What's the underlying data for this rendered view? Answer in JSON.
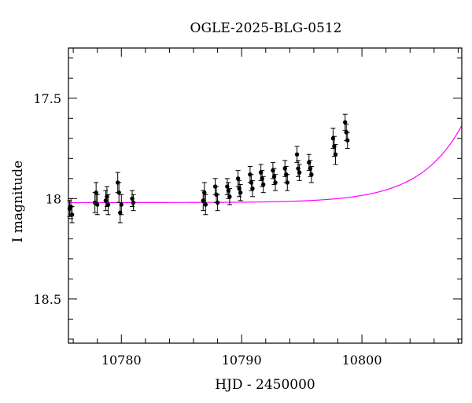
{
  "chart_data": {
    "type": "scatter",
    "title": "OGLE-2025-BLG-0512",
    "xlabel": "HJD - 2450000",
    "ylabel": "I magnitude",
    "xlim": [
      10775.6,
      10808.3
    ],
    "ylim": [
      18.72,
      17.25
    ],
    "y_inverted": true,
    "x_ticks": [
      10780,
      10790,
      10800
    ],
    "y_ticks": [
      17.5,
      18,
      18.5
    ],
    "y_tick_labels": [
      "17.5",
      "18",
      "18.5"
    ],
    "x_minor_step": 2,
    "y_minor_step": 0.1,
    "grid": false,
    "colors": {
      "fit": "#ff00ff",
      "points": "#000000",
      "axes": "#000000"
    },
    "fit_model": {
      "baseline_mag": 18.02,
      "peak_time": 10806.8,
      "tau": 3.5,
      "amplitude": 0.25,
      "cap_mag": 17.25
    },
    "series": [
      {
        "x": [
          10775.7,
          10775.8,
          10775.9,
          10777.8,
          10777.9,
          10778.0,
          10778.7,
          10778.8,
          10778.9,
          10779.7,
          10779.8,
          10779.9,
          10780.0,
          10780.9,
          10781.0,
          10786.8,
          10786.9,
          10787.0,
          10787.8,
          10787.9,
          10788.0,
          10788.8,
          10788.9,
          10789.0,
          10789.7,
          10789.8,
          10789.9,
          10790.7,
          10790.8,
          10790.9,
          10791.6,
          10791.7,
          10791.8,
          10792.6,
          10792.7,
          10792.8,
          10793.6,
          10793.7,
          10793.8,
          10794.6,
          10794.7,
          10794.8,
          10795.6,
          10795.7,
          10795.8,
          10797.6,
          10797.7,
          10797.8,
          10798.6,
          10798.7,
          10798.8
        ],
        "y": [
          18.05,
          18.04,
          18.08,
          18.02,
          17.97,
          18.03,
          18.01,
          17.99,
          18.03,
          17.92,
          17.97,
          18.07,
          18.03,
          18.0,
          18.02,
          18.01,
          17.97,
          18.03,
          17.94,
          17.98,
          18.02,
          17.94,
          17.96,
          17.99,
          17.9,
          17.95,
          17.97,
          17.88,
          17.92,
          17.95,
          17.87,
          17.9,
          17.93,
          17.86,
          17.89,
          17.92,
          17.85,
          17.88,
          17.92,
          17.78,
          17.85,
          17.87,
          17.82,
          17.85,
          17.88,
          17.7,
          17.74,
          17.78,
          17.62,
          17.67,
          17.71
        ],
        "err": [
          0.04,
          0.04,
          0.04,
          0.05,
          0.05,
          0.05,
          0.05,
          0.05,
          0.05,
          0.05,
          0.05,
          0.05,
          0.05,
          0.04,
          0.04,
          0.05,
          0.05,
          0.05,
          0.04,
          0.04,
          0.04,
          0.04,
          0.04,
          0.04,
          0.04,
          0.04,
          0.04,
          0.04,
          0.04,
          0.04,
          0.04,
          0.04,
          0.04,
          0.04,
          0.04,
          0.04,
          0.04,
          0.04,
          0.04,
          0.04,
          0.04,
          0.04,
          0.04,
          0.04,
          0.04,
          0.05,
          0.05,
          0.05,
          0.04,
          0.04,
          0.04
        ]
      }
    ]
  }
}
